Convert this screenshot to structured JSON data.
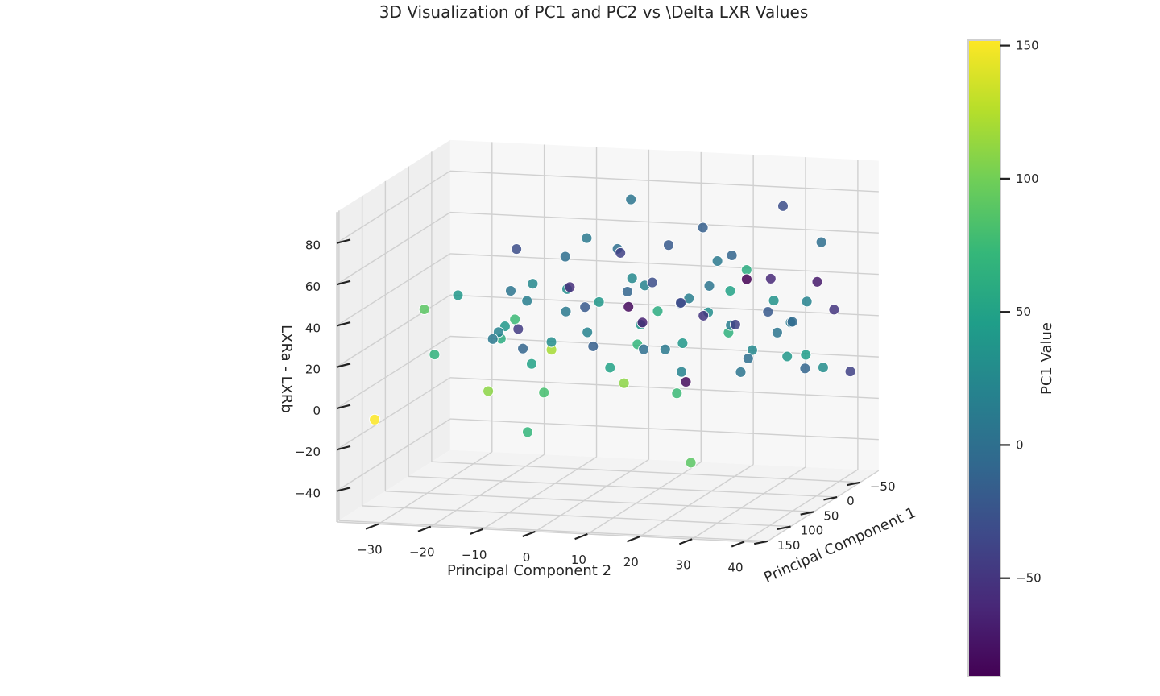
{
  "chart_data": {
    "type": "scatter",
    "title": "3D Visualization of PC1 and PC2 vs \\Delta LXR Values",
    "x_axis": {
      "label": "Principal Component 2",
      "ticks": [
        "−30",
        "−20",
        "−10",
        "0",
        "10",
        "20",
        "30",
        "40"
      ],
      "tick_values": [
        -30,
        -20,
        -10,
        0,
        10,
        20,
        30,
        40
      ],
      "range": [
        -38,
        44
      ]
    },
    "depth_axis": {
      "label": "Principal Component 1",
      "ticks": [
        "−50",
        "0",
        "50",
        "100",
        "150"
      ],
      "tick_values": [
        -50,
        0,
        50,
        100,
        150
      ],
      "range": [
        -90,
        155
      ]
    },
    "z_axis": {
      "label": "LXRa - LXRb",
      "ticks": [
        "−40",
        "−20",
        "0",
        "20",
        "40",
        "60",
        "80"
      ],
      "tick_values": [
        -40,
        -20,
        0,
        20,
        40,
        60,
        80
      ],
      "range": [
        -55,
        95
      ]
    },
    "colorbar": {
      "label": "PC1 Value",
      "ticks": [
        "−50",
        "0",
        "50",
        "100",
        "150"
      ],
      "tick_values": [
        -50,
        0,
        50,
        100,
        150
      ],
      "range": [
        -87,
        152
      ],
      "colormap": "viridis"
    },
    "grid": true,
    "pane_color": "#f2f2f2",
    "grid_color": "#d0d0d0",
    "points": [
      {
        "pc2": -31,
        "pc1": 152,
        "lxr": -5
      },
      {
        "pc2": -27,
        "pc1": 90,
        "lxr": 40
      },
      {
        "pc2": -25,
        "pc1": 40,
        "lxr": 40
      },
      {
        "pc2": -27,
        "pc1": 68,
        "lxr": 15
      },
      {
        "pc2": -21,
        "pc1": 10,
        "lxr": 15
      },
      {
        "pc2": -21,
        "pc1": -45,
        "lxr": 12
      },
      {
        "pc2": -19,
        "pc1": 20,
        "lxr": 20
      },
      {
        "pc2": -20,
        "pc1": -30,
        "lxr": 53
      },
      {
        "pc2": -18,
        "pc1": 5,
        "lxr": 38
      },
      {
        "pc2": -16,
        "pc1": 40,
        "lxr": 26
      },
      {
        "pc2": -14,
        "pc1": 15,
        "lxr": 35
      },
      {
        "pc2": -15,
        "pc1": 60,
        "lxr": 23
      },
      {
        "pc2": -13,
        "pc1": 110,
        "lxr": 5
      },
      {
        "pc2": -12,
        "pc1": 25,
        "lxr": 45
      },
      {
        "pc2": -11,
        "pc1": 75,
        "lxr": 35
      },
      {
        "pc2": -10,
        "pc1": 50,
        "lxr": 10
      },
      {
        "pc2": -9,
        "pc1": 70,
        "lxr": -20
      },
      {
        "pc2": -8,
        "pc1": 0,
        "lxr": 55
      },
      {
        "pc2": -7,
        "pc1": 10,
        "lxr": 30
      },
      {
        "pc2": -6,
        "pc1": -20,
        "lxr": 28
      },
      {
        "pc2": -5,
        "pc1": 30,
        "lxr": 44
      },
      {
        "pc2": -5,
        "pc1": 80,
        "lxr": 1
      },
      {
        "pc2": -3,
        "pc1": -80,
        "lxr": 20
      },
      {
        "pc2": -3,
        "pc1": 10,
        "lxr": 66
      },
      {
        "pc2": -2,
        "pc1": 20,
        "lxr": 22
      },
      {
        "pc2": -1,
        "pc1": -40,
        "lxr": 52
      },
      {
        "pc2": 0,
        "pc1": 120,
        "lxr": 28
      },
      {
        "pc2": 1,
        "pc1": -65,
        "lxr": 15
      },
      {
        "pc2": 2,
        "pc1": 0,
        "lxr": 60
      },
      {
        "pc2": 3,
        "pc1": -10,
        "lxr": 38
      },
      {
        "pc2": 5,
        "pc1": 50,
        "lxr": 10
      },
      {
        "pc2": 5,
        "pc1": 5,
        "lxr": 85
      },
      {
        "pc2": 6,
        "pc1": -30,
        "lxr": 40
      },
      {
        "pc2": 7,
        "pc1": 0,
        "lxr": 12
      },
      {
        "pc2": 8,
        "pc1": -80,
        "lxr": -15
      },
      {
        "pc2": 9,
        "pc1": 20,
        "lxr": 46
      },
      {
        "pc2": 10,
        "pc1": 40,
        "lxr": 30
      },
      {
        "pc2": 10,
        "pc1": -20,
        "lxr": 60
      },
      {
        "pc2": 12,
        "pc1": 70,
        "lxr": 25
      },
      {
        "pc2": 12,
        "pc1": 10,
        "lxr": 14
      },
      {
        "pc2": 13,
        "pc1": 110,
        "lxr": 12
      },
      {
        "pc2": 14,
        "pc1": -50,
        "lxr": 22
      },
      {
        "pc2": 14,
        "pc1": 0,
        "lxr": 35
      },
      {
        "pc2": 15,
        "pc1": 60,
        "lxr": 40
      },
      {
        "pc2": 16,
        "pc1": 20,
        "lxr": 5
      },
      {
        "pc2": 17,
        "pc1": -15,
        "lxr": 70
      },
      {
        "pc2": 18,
        "pc1": 40,
        "lxr": 22
      },
      {
        "pc2": 19,
        "pc1": -87,
        "lxr": 35
      },
      {
        "pc2": 20,
        "pc1": 5,
        "lxr": 45
      },
      {
        "pc2": 20,
        "pc1": 75,
        "lxr": 3
      },
      {
        "pc2": 21,
        "pc1": -40,
        "lxr": 20
      },
      {
        "pc2": 22,
        "pc1": 30,
        "lxr": 36
      },
      {
        "pc2": 23,
        "pc1": -10,
        "lxr": 58
      },
      {
        "pc2": 24,
        "pc1": 90,
        "lxr": -28
      },
      {
        "pc2": 25,
        "pc1": 15,
        "lxr": 28
      },
      {
        "pc2": 26,
        "pc1": -60,
        "lxr": 40
      },
      {
        "pc2": 27,
        "pc1": 0,
        "lxr": 10
      },
      {
        "pc2": 28,
        "pc1": 50,
        "lxr": 50
      },
      {
        "pc2": 29,
        "pc1": -20,
        "lxr": 30
      },
      {
        "pc2": 30,
        "pc1": 25,
        "lxr": 18
      },
      {
        "pc2": 31,
        "pc1": -30,
        "lxr": 80
      },
      {
        "pc2": 32,
        "pc1": 60,
        "lxr": 62
      },
      {
        "pc2": 33,
        "pc1": 5,
        "lxr": 24
      },
      {
        "pc2": 34,
        "pc1": -70,
        "lxr": 38
      },
      {
        "pc2": 35,
        "pc1": 35,
        "lxr": 44
      },
      {
        "pc2": 36,
        "pc1": 10,
        "lxr": 30
      },
      {
        "pc2": 37,
        "pc1": -10,
        "lxr": 5
      },
      {
        "pc2": 38,
        "pc1": 40,
        "lxr": 18
      },
      {
        "pc2": 39,
        "pc1": -50,
        "lxr": 28
      },
      {
        "pc2": 40,
        "pc1": 20,
        "lxr": 42
      },
      {
        "pc2": 41,
        "pc1": 0,
        "lxr": 68
      },
      {
        "pc2": 42,
        "pc1": 45,
        "lxr": 20
      },
      {
        "pc2": 43,
        "pc1": -40,
        "lxr": 0
      },
      {
        "pc2": 44,
        "pc1": 30,
        "lxr": 12
      },
      {
        "pc2": -17,
        "pc1": -10,
        "lxr": 8
      },
      {
        "pc2": -8,
        "pc1": 30,
        "lxr": 18
      },
      {
        "pc2": 2,
        "pc1": 40,
        "lxr": 40
      },
      {
        "pc2": 11,
        "pc1": -35,
        "lxr": 30
      },
      {
        "pc2": 22,
        "pc1": 10,
        "lxr": 58
      },
      {
        "pc2": 29,
        "pc1": 65,
        "lxr": 32
      },
      {
        "pc2": -4,
        "pc1": -15,
        "lxr": 10
      },
      {
        "pc2": 7,
        "pc1": 25,
        "lxr": 50
      },
      {
        "pc2": 17,
        "pc1": 15,
        "lxr": 40
      },
      {
        "pc2": 26,
        "pc1": 5,
        "lxr": 4
      },
      {
        "pc2": 35,
        "pc1": -5,
        "lxr": 28
      },
      {
        "pc2": -12,
        "pc1": -55,
        "lxr": 32
      }
    ]
  }
}
